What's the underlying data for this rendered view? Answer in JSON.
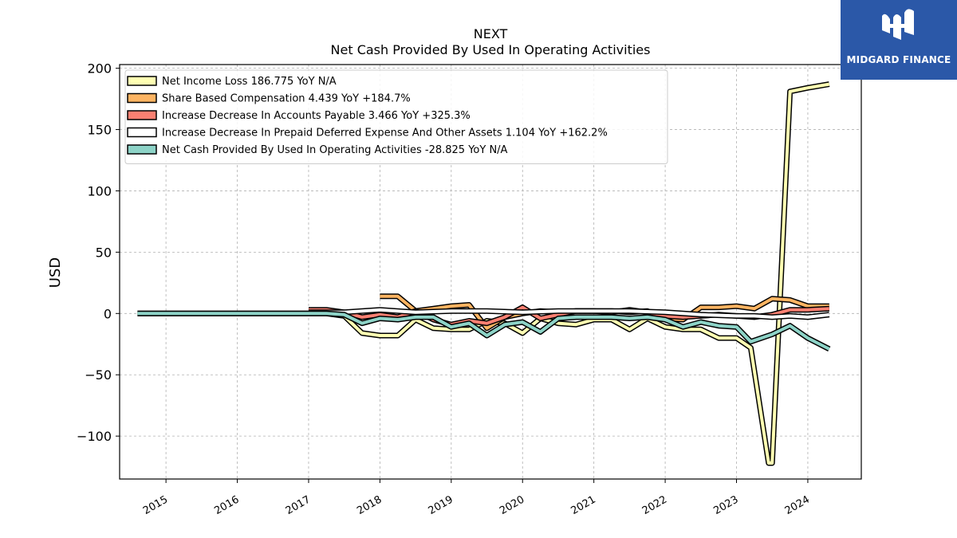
{
  "logo": {
    "text": "MIDGARD FINANCE",
    "background": "#2b58a8"
  },
  "chart_data": {
    "type": "line",
    "title": "NEXT",
    "subtitle": "Net Cash Provided By Used In Operating Activities",
    "xlabel": "",
    "ylabel": "USD",
    "xlim": [
      2014.35,
      2024.75
    ],
    "ylim": [
      -135,
      203
    ],
    "xticks": [
      2015,
      2016,
      2017,
      2018,
      2019,
      2020,
      2021,
      2022,
      2023,
      2024
    ],
    "xtick_labels": [
      "2015",
      "2016",
      "2017",
      "2018",
      "2019",
      "2020",
      "2021",
      "2022",
      "2023",
      "2024"
    ],
    "yticks": [
      -100,
      -50,
      0,
      50,
      100,
      150,
      200
    ],
    "ytick_labels": [
      "−100",
      "−50",
      "0",
      "50",
      "100",
      "150",
      "200"
    ],
    "grid": true,
    "legend_position": "upper-left",
    "series": [
      {
        "name": "Net Income Loss",
        "legend_label": "Net Income Loss  186.775 YoY N/A",
        "color": "#ffffb3",
        "points": [
          [
            2014.6,
            0
          ],
          [
            2015.0,
            0
          ],
          [
            2015.5,
            0
          ],
          [
            2016.0,
            0
          ],
          [
            2016.5,
            0
          ],
          [
            2017.0,
            0
          ],
          [
            2017.25,
            0
          ],
          [
            2017.5,
            -2
          ],
          [
            2017.75,
            -16
          ],
          [
            2018.0,
            -18
          ],
          [
            2018.25,
            -18
          ],
          [
            2018.5,
            -5
          ],
          [
            2018.75,
            -12
          ],
          [
            2019.0,
            -13
          ],
          [
            2019.25,
            -13
          ],
          [
            2019.5,
            -6
          ],
          [
            2019.75,
            -8
          ],
          [
            2020.0,
            -16
          ],
          [
            2020.25,
            -4
          ],
          [
            2020.5,
            -8
          ],
          [
            2020.75,
            -9
          ],
          [
            2021.0,
            -5
          ],
          [
            2021.25,
            -5
          ],
          [
            2021.5,
            -13
          ],
          [
            2021.75,
            -4
          ],
          [
            2022.0,
            -11
          ],
          [
            2022.25,
            -13
          ],
          [
            2022.5,
            -13
          ],
          [
            2022.75,
            -20
          ],
          [
            2023.0,
            -20
          ],
          [
            2023.2,
            -28
          ],
          [
            2023.45,
            -122
          ],
          [
            2023.5,
            -122
          ],
          [
            2023.75,
            181
          ],
          [
            2024.0,
            184
          ],
          [
            2024.3,
            187
          ]
        ]
      },
      {
        "name": "Share Based Compensation",
        "legend_label": "Share Based Compensation  4.439 YoY +184.7%",
        "color": "#fdb462",
        "points": [
          [
            2018.0,
            14
          ],
          [
            2018.25,
            14
          ],
          [
            2018.5,
            2
          ],
          [
            2018.75,
            4
          ],
          [
            2019.0,
            6
          ],
          [
            2019.25,
            7
          ],
          [
            2019.5,
            -12
          ],
          [
            2019.75,
            -3
          ],
          [
            2020.0,
            0
          ],
          [
            2020.25,
            2
          ],
          [
            2020.5,
            1
          ],
          [
            2020.75,
            2
          ],
          [
            2021.0,
            2
          ],
          [
            2021.25,
            2
          ],
          [
            2021.5,
            1
          ],
          [
            2021.75,
            2
          ],
          [
            2022.0,
            -4
          ],
          [
            2022.25,
            -5
          ],
          [
            2022.5,
            5
          ],
          [
            2022.75,
            5
          ],
          [
            2023.0,
            6
          ],
          [
            2023.25,
            4
          ],
          [
            2023.5,
            12
          ],
          [
            2023.75,
            11
          ],
          [
            2024.0,
            6
          ],
          [
            2024.3,
            6
          ]
        ]
      },
      {
        "name": "Increase Decrease In Accounts Payable",
        "legend_label": "Increase Decrease In Accounts Payable  3.466 YoY +325.3%",
        "color": "#fb8072",
        "points": [
          [
            2017.0,
            3
          ],
          [
            2017.25,
            3
          ],
          [
            2017.5,
            1
          ],
          [
            2017.75,
            -3
          ],
          [
            2018.0,
            -1
          ],
          [
            2018.25,
            -3
          ],
          [
            2018.5,
            2
          ],
          [
            2018.75,
            -5
          ],
          [
            2019.0,
            -9
          ],
          [
            2019.25,
            -6
          ],
          [
            2019.5,
            -8
          ],
          [
            2019.75,
            -3
          ],
          [
            2020.0,
            5
          ],
          [
            2020.25,
            -4
          ],
          [
            2020.5,
            -1
          ],
          [
            2020.75,
            2
          ],
          [
            2021.0,
            2
          ],
          [
            2021.25,
            1
          ],
          [
            2021.5,
            3
          ],
          [
            2021.75,
            1
          ],
          [
            2022.0,
            -2
          ],
          [
            2022.25,
            -3
          ],
          [
            2022.5,
            -2
          ],
          [
            2022.75,
            -1
          ],
          [
            2023.0,
            -2
          ],
          [
            2023.25,
            -3
          ],
          [
            2023.5,
            -1
          ],
          [
            2023.75,
            3
          ],
          [
            2024.0,
            3
          ],
          [
            2024.3,
            4
          ]
        ]
      },
      {
        "name": "Increase Decrease In Prepaid Deferred Expense And Other Assets",
        "legend_label": "Increase Decrease In Prepaid Deferred Expense And Other Assets  1.104 YoY +162.2%",
        "color": "#ffffff",
        "points": [
          [
            2017.0,
            1
          ],
          [
            2017.5,
            1
          ],
          [
            2018.0,
            3
          ],
          [
            2018.5,
            1
          ],
          [
            2019.0,
            2
          ],
          [
            2019.5,
            2
          ],
          [
            2020.0,
            1
          ],
          [
            2020.5,
            2
          ],
          [
            2021.0,
            2
          ],
          [
            2021.5,
            2
          ],
          [
            2022.0,
            1
          ],
          [
            2022.5,
            -1
          ],
          [
            2023.0,
            -2
          ],
          [
            2023.25,
            -2
          ],
          [
            2023.5,
            -3
          ],
          [
            2023.75,
            -2
          ],
          [
            2024.0,
            -3
          ],
          [
            2024.3,
            -1
          ]
        ]
      },
      {
        "name": "Net Cash Provided By Used In Operating Activities",
        "legend_label": "Net Cash Provided By Used In Operating Activities  -28.825 YoY N/A",
        "color": "#8dd3c7",
        "points": [
          [
            2014.6,
            0
          ],
          [
            2015.0,
            0
          ],
          [
            2015.5,
            0
          ],
          [
            2016.0,
            0
          ],
          [
            2016.5,
            0
          ],
          [
            2017.0,
            0
          ],
          [
            2017.25,
            0
          ],
          [
            2017.5,
            -1
          ],
          [
            2017.75,
            -8
          ],
          [
            2018.0,
            -4
          ],
          [
            2018.25,
            -5
          ],
          [
            2018.5,
            -3
          ],
          [
            2018.75,
            -3
          ],
          [
            2019.0,
            -11
          ],
          [
            2019.25,
            -8
          ],
          [
            2019.5,
            -18
          ],
          [
            2019.75,
            -9
          ],
          [
            2020.0,
            -7
          ],
          [
            2020.25,
            -15
          ],
          [
            2020.5,
            -4
          ],
          [
            2020.75,
            -3
          ],
          [
            2021.0,
            -3
          ],
          [
            2021.25,
            -3
          ],
          [
            2021.5,
            -4
          ],
          [
            2021.75,
            -3
          ],
          [
            2022.0,
            -5
          ],
          [
            2022.25,
            -11
          ],
          [
            2022.5,
            -7
          ],
          [
            2022.75,
            -10
          ],
          [
            2023.0,
            -11
          ],
          [
            2023.2,
            -23
          ],
          [
            2023.5,
            -17
          ],
          [
            2023.75,
            -10
          ],
          [
            2024.0,
            -20
          ],
          [
            2024.3,
            -29
          ]
        ]
      }
    ]
  }
}
